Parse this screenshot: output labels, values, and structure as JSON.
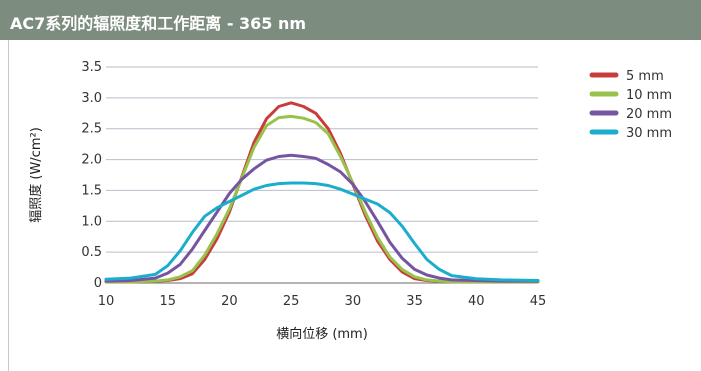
{
  "header": {
    "title": "AC7系列的辐照度和工作距离 - 365 nm"
  },
  "chart_data": {
    "type": "line",
    "title": "AC7系列的辐照度和工作距离 - 365 nm",
    "xlabel": "横向位移 (mm)",
    "ylabel": "辐照度 (W/cm²)",
    "xlim": [
      10,
      45
    ],
    "ylim": [
      0,
      3.5
    ],
    "x_ticks": [
      "10",
      "15",
      "20",
      "25",
      "30",
      "35",
      "40",
      "45"
    ],
    "y_ticks": [
      "0",
      "0.5",
      "1.0",
      "1.5",
      "2.0",
      "2.5",
      "3.0",
      "3.5"
    ],
    "grid": "horizontal",
    "legend_position": "right",
    "x": [
      10,
      12,
      14,
      15,
      16,
      17,
      18,
      19,
      20,
      21,
      22,
      23,
      24,
      25,
      26,
      27,
      28,
      29,
      30,
      31,
      32,
      33,
      34,
      35,
      36,
      37,
      38,
      40,
      42,
      45
    ],
    "series": [
      {
        "name": "5 mm",
        "color": "#c83c3a",
        "values": [
          0.02,
          0.02,
          0.03,
          0.04,
          0.07,
          0.15,
          0.38,
          0.72,
          1.15,
          1.72,
          2.28,
          2.66,
          2.86,
          2.92,
          2.86,
          2.75,
          2.5,
          2.1,
          1.6,
          1.1,
          0.68,
          0.38,
          0.18,
          0.07,
          0.04,
          0.03,
          0.02,
          0.02,
          0.02,
          0.02
        ]
      },
      {
        "name": "10 mm",
        "color": "#99c24d",
        "values": [
          0.02,
          0.02,
          0.03,
          0.05,
          0.1,
          0.2,
          0.45,
          0.8,
          1.2,
          1.7,
          2.2,
          2.55,
          2.68,
          2.7,
          2.67,
          2.6,
          2.42,
          2.05,
          1.62,
          1.15,
          0.74,
          0.42,
          0.22,
          0.1,
          0.05,
          0.03,
          0.02,
          0.02,
          0.02,
          0.02
        ]
      },
      {
        "name": "20 mm",
        "color": "#7655a0",
        "values": [
          0.03,
          0.04,
          0.08,
          0.16,
          0.3,
          0.55,
          0.85,
          1.15,
          1.45,
          1.68,
          1.85,
          1.99,
          2.05,
          2.07,
          2.05,
          2.02,
          1.92,
          1.8,
          1.6,
          1.32,
          1.0,
          0.66,
          0.4,
          0.22,
          0.13,
          0.08,
          0.05,
          0.04,
          0.03,
          0.03
        ]
      },
      {
        "name": "30 mm",
        "color": "#1aaecc",
        "values": [
          0.06,
          0.08,
          0.14,
          0.28,
          0.52,
          0.82,
          1.08,
          1.22,
          1.32,
          1.42,
          1.52,
          1.58,
          1.61,
          1.62,
          1.62,
          1.61,
          1.58,
          1.52,
          1.44,
          1.36,
          1.28,
          1.14,
          0.92,
          0.64,
          0.38,
          0.22,
          0.12,
          0.07,
          0.05,
          0.04
        ]
      }
    ]
  }
}
